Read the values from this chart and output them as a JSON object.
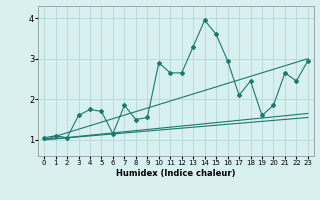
{
  "xlabel": "Humidex (Indice chaleur)",
  "background_color": "#d9f0f0",
  "line_color": "#1a7a6e",
  "grid_color": "#b8d8d8",
  "xlim": [
    -0.5,
    23.5
  ],
  "ylim": [
    0.6,
    4.3
  ],
  "xticks": [
    0,
    1,
    2,
    3,
    4,
    5,
    6,
    7,
    8,
    9,
    10,
    11,
    12,
    13,
    14,
    15,
    16,
    17,
    18,
    19,
    20,
    21,
    22,
    23
  ],
  "yticks": [
    1,
    2,
    3,
    4
  ],
  "main_line_x": [
    0,
    1,
    2,
    3,
    4,
    5,
    6,
    7,
    8,
    9,
    10,
    11,
    12,
    13,
    14,
    15,
    16,
    17,
    18,
    19,
    20,
    21,
    22,
    23
  ],
  "main_line_y": [
    1.05,
    1.1,
    1.05,
    1.6,
    1.75,
    1.7,
    1.15,
    1.85,
    1.5,
    1.55,
    2.9,
    2.65,
    2.65,
    3.3,
    3.95,
    3.6,
    2.95,
    2.1,
    2.45,
    1.6,
    1.85,
    2.65,
    2.45,
    2.95
  ],
  "line2_x": [
    0,
    23
  ],
  "line2_y": [
    1.0,
    3.0
  ],
  "line3_x": [
    0,
    23
  ],
  "line3_y": [
    1.0,
    1.65
  ],
  "line4_x": [
    0,
    23
  ],
  "line4_y": [
    1.0,
    1.55
  ],
  "figsize": [
    3.2,
    2.0
  ],
  "dpi": 100
}
